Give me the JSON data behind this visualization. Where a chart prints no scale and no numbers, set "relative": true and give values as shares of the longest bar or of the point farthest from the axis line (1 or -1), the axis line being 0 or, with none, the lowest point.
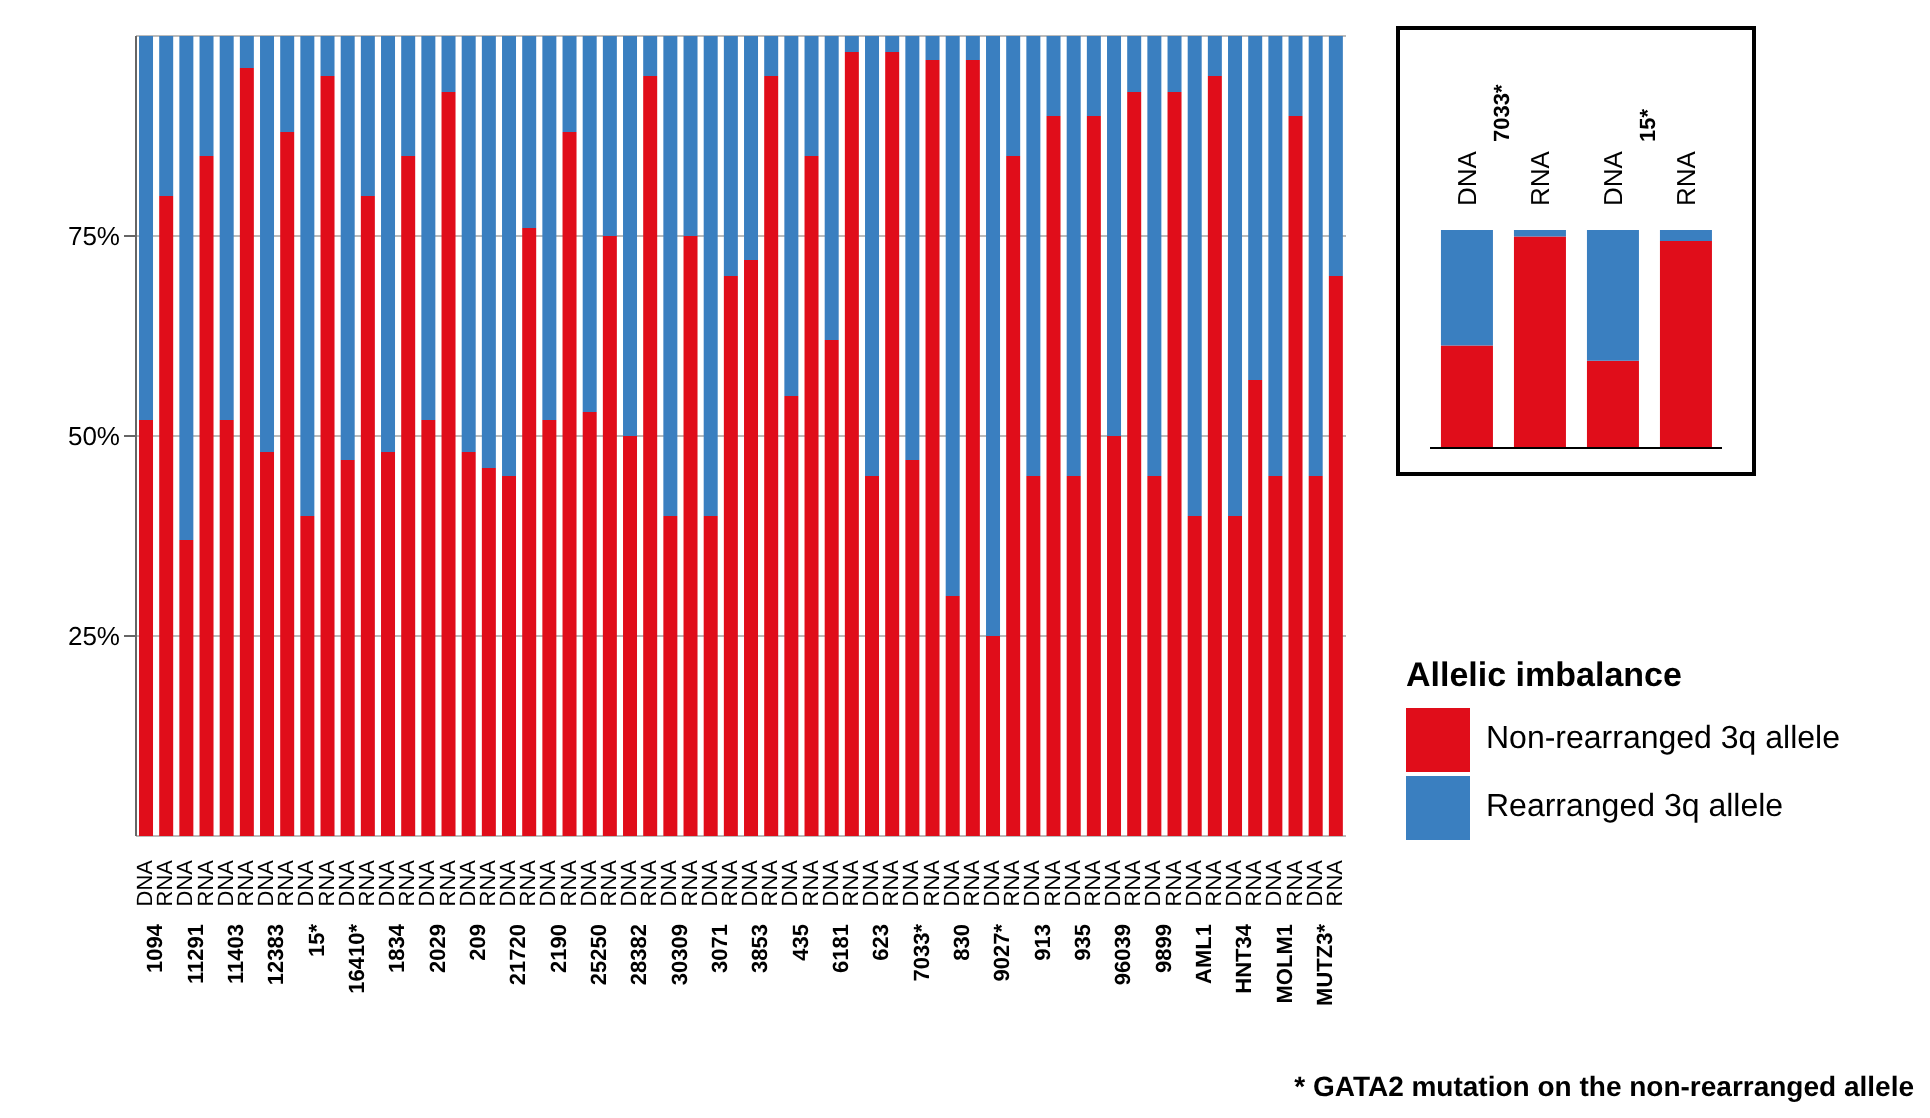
{
  "chart_data": [
    {
      "type": "bar",
      "stacked": true,
      "legend": "right",
      "legend_title": "Allelic imbalance",
      "grid": "y",
      "ylim": [
        0,
        100
      ],
      "yticks": [
        {
          "value": 25,
          "label": "25%"
        },
        {
          "value": 50,
          "label": "50%"
        },
        {
          "value": 75,
          "label": "75%"
        }
      ],
      "categories": [
        "DNA",
        "RNA",
        "DNA",
        "RNA",
        "DNA",
        "RNA",
        "DNA",
        "RNA",
        "DNA",
        "RNA",
        "DNA",
        "RNA",
        "DNA",
        "RNA",
        "DNA",
        "RNA",
        "DNA",
        "RNA",
        "DNA",
        "RNA",
        "DNA",
        "RNA",
        "DNA",
        "RNA",
        "DNA",
        "RNA",
        "DNA",
        "RNA",
        "DNA",
        "RNA",
        "DNA",
        "RNA",
        "DNA",
        "RNA",
        "DNA",
        "RNA",
        "DNA",
        "RNA",
        "DNA",
        "RNA",
        "DNA",
        "RNA",
        "DNA",
        "RNA",
        "DNA",
        "RNA",
        "DNA",
        "RNA",
        "DNA",
        "RNA",
        "DNA",
        "RNA",
        "DNA",
        "RNA",
        "DNA",
        "RNA",
        "DNA",
        "RNA",
        "DNA",
        "RNA"
      ],
      "series": [
        {
          "name": "Non-rearranged 3q allele",
          "color": "#e00d1a",
          "values": [
            52,
            80,
            37,
            85,
            52,
            96,
            48,
            88,
            40,
            95,
            47,
            80,
            48,
            85,
            52,
            93,
            48,
            46,
            45,
            76,
            52,
            88,
            53,
            75,
            50,
            95,
            40,
            75,
            40,
            70,
            72,
            95,
            55,
            85,
            62,
            98,
            45,
            98,
            47,
            97,
            30,
            97,
            25,
            85,
            45,
            90,
            45,
            90,
            50,
            93,
            45,
            93,
            40,
            95,
            40,
            57,
            45,
            90,
            45,
            70
          ]
        },
        {
          "name": "Rearranged 3q allele",
          "color": "#3a7fc0",
          "values": [
            48,
            20,
            63,
            15,
            48,
            4,
            52,
            12,
            60,
            5,
            53,
            20,
            52,
            15,
            48,
            7,
            52,
            54,
            55,
            24,
            48,
            12,
            47,
            25,
            50,
            5,
            60,
            25,
            60,
            30,
            28,
            5,
            45,
            15,
            38,
            2,
            55,
            2,
            53,
            3,
            70,
            3,
            75,
            15,
            55,
            10,
            55,
            10,
            50,
            7,
            55,
            7,
            60,
            5,
            60,
            43,
            55,
            10,
            55,
            30
          ]
        }
      ],
      "annotations": [
        "1094",
        "11291",
        "11403",
        "12383",
        "15*",
        "16410*",
        "1834",
        "2029",
        "209",
        "21720",
        "2190",
        "25250",
        "28382",
        "30309",
        "3071",
        "3853",
        "435",
        "6181",
        "623",
        "7033*",
        "830",
        "9027*",
        "913",
        "935",
        "96039",
        "9899",
        "AML1",
        "HNT34",
        "MOLM1",
        "MUTZ3*",
        "* GATA2 mutation on the non-rearranged allele"
      ]
    },
    {
      "type": "bar",
      "stacked": true,
      "relative": true,
      "categories": [
        "DNA",
        "RNA",
        "DNA",
        "RNA"
      ],
      "series": [
        {
          "color": "#e00d1a",
          "values": [
            0.47,
            0.97,
            0.4,
            0.95
          ]
        },
        {
          "color": "#3a7fc0",
          "values": [
            0.53,
            0.03,
            0.6,
            0.05
          ]
        }
      ],
      "annotations": [
        "7033*",
        "15*"
      ]
    }
  ]
}
